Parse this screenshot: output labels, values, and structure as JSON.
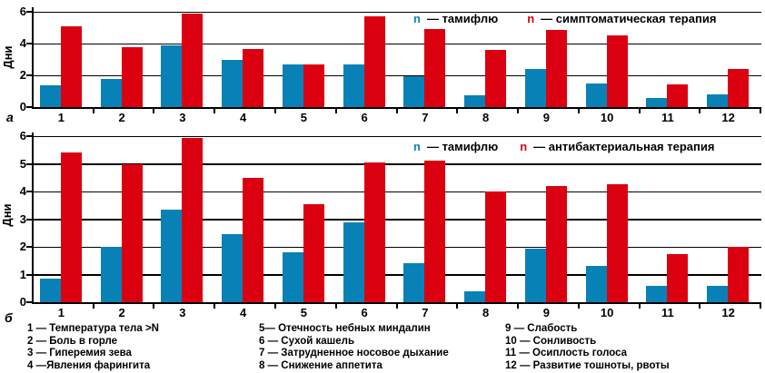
{
  "colors": {
    "tamiflu_blue": "#0881B7",
    "therapy_red": "#DA000F",
    "axis_black": "#000000",
    "background": "#FFFFFF"
  },
  "chart_data": [
    {
      "type": "bar",
      "panel_label": "а",
      "title": "",
      "xlabel": "",
      "ylabel": "Дни",
      "ylim": [
        0,
        6
      ],
      "yticks": [
        0,
        2,
        4,
        6
      ],
      "grid": true,
      "categories": [
        "1",
        "2",
        "3",
        "4",
        "5",
        "6",
        "7",
        "8",
        "9",
        "10",
        "11",
        "12"
      ],
      "series": [
        {
          "name": "тамифлю",
          "color": "#0881B7",
          "values": [
            1.35,
            1.75,
            3.9,
            3.0,
            2.7,
            2.7,
            1.95,
            0.75,
            2.4,
            1.5,
            0.6,
            0.8
          ]
        },
        {
          "name": "симптоматическая терапия",
          "color": "#DA000F",
          "values": [
            5.1,
            3.8,
            5.9,
            3.65,
            2.7,
            5.7,
            4.9,
            3.6,
            4.85,
            4.5,
            1.45,
            2.4
          ]
        }
      ],
      "legend": {
        "position": "top-right-inside",
        "marker": "n",
        "items": [
          {
            "series": 0,
            "label": "— тамифлю"
          },
          {
            "series": 1,
            "label": "— симптоматическая терапия"
          }
        ]
      }
    },
    {
      "type": "bar",
      "panel_label": "б",
      "title": "",
      "xlabel": "",
      "ylabel": "Дни",
      "ylim": [
        0,
        6
      ],
      "yticks": [
        0,
        1,
        2,
        3,
        4,
        5,
        6
      ],
      "grid": true,
      "categories": [
        "1",
        "2",
        "3",
        "4",
        "5",
        "6",
        "7",
        "8",
        "9",
        "10",
        "11",
        "12"
      ],
      "series": [
        {
          "name": "тамифлю",
          "color": "#0881B7",
          "values": [
            0.85,
            2.0,
            3.35,
            2.45,
            1.8,
            2.9,
            1.4,
            0.4,
            1.95,
            1.3,
            0.6,
            0.6
          ]
        },
        {
          "name": "антибактериальная терапия",
          "color": "#DA000F",
          "values": [
            5.4,
            5.0,
            5.95,
            4.5,
            3.55,
            5.05,
            5.1,
            4.0,
            4.2,
            4.25,
            1.75,
            2.0
          ]
        }
      ],
      "legend": {
        "position": "top-right-inside",
        "marker": "n",
        "items": [
          {
            "series": 0,
            "label": "— тамифлю"
          },
          {
            "series": 1,
            "label": "— антибактериальная терапия"
          }
        ]
      }
    }
  ],
  "footnotes": {
    "columns": [
      [
        "1 — Температура тела >N",
        "2 — Боль в горле",
        "3 — Гиперемия зева",
        "4 —Явления фарингита"
      ],
      [
        "5— Отечность небных миндалин",
        "6 — Сухой кашель",
        "7 — Затрудненное носовое дыхание",
        "8 — Снижение аппетита"
      ],
      [
        "9 — Слабость",
        "10 — Сонливость",
        "11 — Осиплость голоса",
        "12 — Развитие тошноты, рвоты"
      ]
    ]
  }
}
